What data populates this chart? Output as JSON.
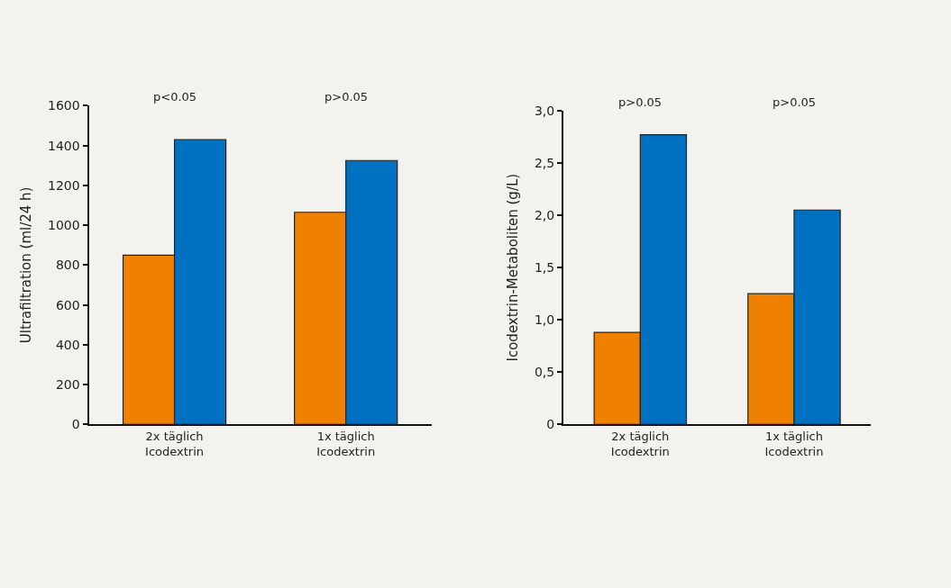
{
  "chart_data": [
    {
      "type": "bar",
      "ylabel": "Ultrafiltration (ml/24 h)",
      "categories": [
        "2x täglich\nIcodextrin",
        "1x täglich\nIcodextrin"
      ],
      "series": [
        {
          "color": "#f08000",
          "values": [
            850,
            1065
          ]
        },
        {
          "color": "#0070c0",
          "values": [
            1430,
            1325
          ]
        }
      ],
      "ylim": [
        0,
        1600
      ],
      "yticks": [
        0,
        200,
        400,
        600,
        800,
        1000,
        1200,
        1400,
        1600
      ],
      "grid": false,
      "annotations": [
        "p<0.05",
        "p>0.05"
      ]
    },
    {
      "type": "bar",
      "ylabel": "Icodextrin-Metaboliten (g/L)",
      "categories": [
        "2x täglich\nIcodextrin",
        "1x täglich\nIcodextrin"
      ],
      "series": [
        {
          "color": "#f08000",
          "values": [
            0.88,
            1.25
          ]
        },
        {
          "color": "#0070c0",
          "values": [
            2.77,
            2.05
          ]
        }
      ],
      "ylim": [
        0,
        3.0
      ],
      "yticks": [
        0,
        {
          "value": 0.5,
          "label": "0,5"
        },
        {
          "value": 1.0,
          "label": "1,0"
        },
        {
          "value": 1.5,
          "label": "1,5"
        },
        {
          "value": 2.0,
          "label": "2,0"
        },
        {
          "value": 2.5,
          "label": "2,5"
        },
        {
          "value": 3.0,
          "label": "3,0"
        }
      ],
      "grid": false,
      "annotations": [
        "p>0.05",
        "p>0.05"
      ]
    }
  ]
}
